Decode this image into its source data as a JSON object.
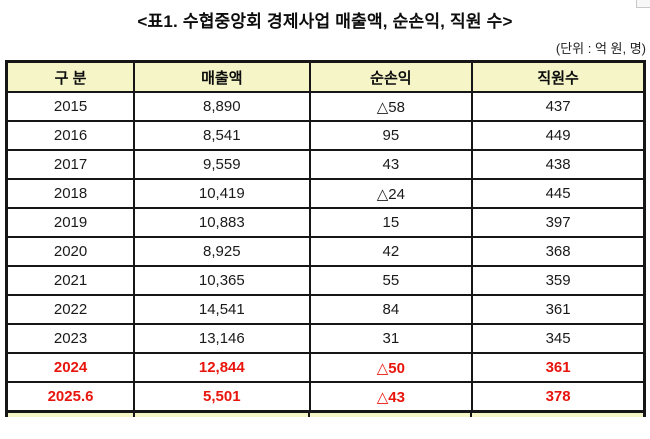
{
  "page": {
    "title": "<표1. 수협중앙회 경제사업 매출액, 순손익, 직원 수>",
    "unit_note": "(단위 : 억 원, 명)"
  },
  "colors": {
    "header_bg": "#f5f5c8",
    "highlight_text": "#e8150d",
    "border": "#161616"
  },
  "table": {
    "columns": [
      "구 분",
      "매출액",
      "순손익",
      "직원수"
    ],
    "rows": [
      {
        "year": "2015",
        "revenue": "8,890",
        "net_income": "△58",
        "employees": "437",
        "highlight": false
      },
      {
        "year": "2016",
        "revenue": "8,541",
        "net_income": "95",
        "employees": "449",
        "highlight": false
      },
      {
        "year": "2017",
        "revenue": "9,559",
        "net_income": "43",
        "employees": "438",
        "highlight": false
      },
      {
        "year": "2018",
        "revenue": "10,419",
        "net_income": "△24",
        "employees": "445",
        "highlight": false
      },
      {
        "year": "2019",
        "revenue": "10,883",
        "net_income": "15",
        "employees": "397",
        "highlight": false
      },
      {
        "year": "2020",
        "revenue": "8,925",
        "net_income": "42",
        "employees": "368",
        "highlight": false
      },
      {
        "year": "2021",
        "revenue": "10,365",
        "net_income": "55",
        "employees": "359",
        "highlight": false
      },
      {
        "year": "2022",
        "revenue": "14,541",
        "net_income": "84",
        "employees": "361",
        "highlight": false
      },
      {
        "year": "2023",
        "revenue": "13,146",
        "net_income": "31",
        "employees": "345",
        "highlight": false
      },
      {
        "year": "2024",
        "revenue": "12,844",
        "net_income": "△50",
        "employees": "361",
        "highlight": true
      },
      {
        "year": "2025.6",
        "revenue": "5,501",
        "net_income": "△43",
        "employees": "378",
        "highlight": true
      }
    ]
  }
}
